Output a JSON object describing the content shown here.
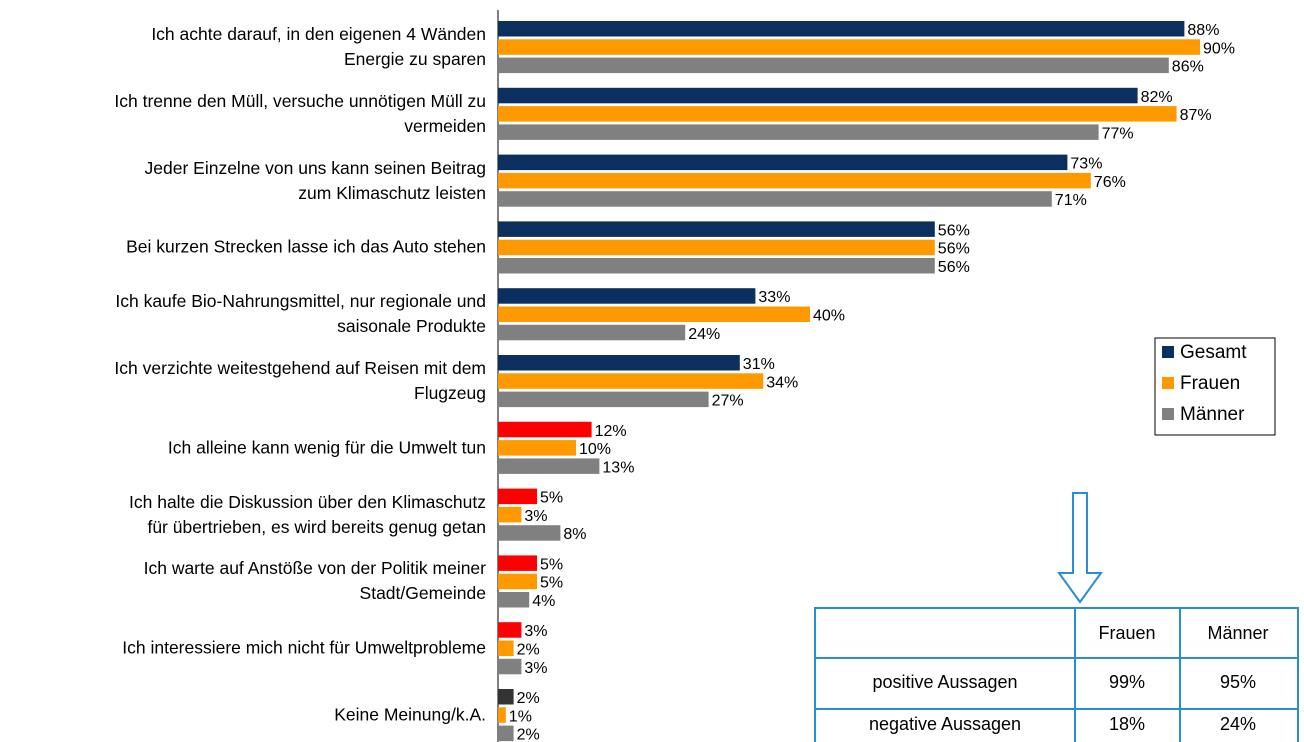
{
  "chart_data": {
    "type": "bar",
    "orientation": "horizontal",
    "categories": [
      "Ich achte darauf, in den eigenen 4 Wänden\nEnergie zu sparen",
      "Ich trenne den Müll, versuche unnötigen Müll zu\nvermeiden",
      "Jeder Einzelne von uns kann seinen Beitrag\nzum Klimaschutz leisten",
      "Bei kurzen Strecken lasse ich das Auto stehen",
      "Ich kaufe Bio-Nahrungsmittel, nur regionale und\nsaisonale Produkte",
      "Ich verzichte weitestgehend auf Reisen mit dem\nFlugzeug",
      "Ich alleine kann wenig für die Umwelt tun",
      "Ich halte die Diskussion  über den Klimaschutz\nfür übertrieben, es wird bereits genug getan",
      "Ich warte auf Anstöße von der Politik meiner\nStadt/Gemeinde",
      "Ich interessiere mich nicht für Umweltprobleme",
      "Keine Meinung/k.A."
    ],
    "series": [
      {
        "name": "Gesamt",
        "color": "#0b2f5e",
        "point_colors": [
          "#0b2f5e",
          "#0b2f5e",
          "#0b2f5e",
          "#0b2f5e",
          "#0b2f5e",
          "#0b2f5e",
          "#ff0000",
          "#ff0000",
          "#ff0000",
          "#ff0000",
          "#333333"
        ],
        "values": [
          88,
          82,
          73,
          56,
          33,
          31,
          12,
          5,
          5,
          3,
          2
        ],
        "value_labels": [
          "88%",
          "82%",
          "73%",
          "56%",
          "33%",
          "31%",
          "12%",
          "5%",
          "5%",
          "3%",
          "2%"
        ]
      },
      {
        "name": "Frauen",
        "color": "#ff9900",
        "values": [
          90,
          87,
          76,
          56,
          40,
          34,
          10,
          3,
          5,
          2,
          1
        ],
        "value_labels": [
          "90%",
          "87%",
          "76%",
          "56%",
          "40%",
          "34%",
          "10%",
          "3%",
          "5%",
          "2%",
          "1%"
        ]
      },
      {
        "name": "Männer",
        "color": "#808080",
        "values": [
          86,
          77,
          71,
          56,
          24,
          27,
          13,
          8,
          4,
          3,
          2
        ],
        "value_labels": [
          "86%",
          "77%",
          "71%",
          "56%",
          "24%",
          "27%",
          "13%",
          "8%",
          "4%",
          "3%",
          "2%"
        ]
      }
    ],
    "legend": "right",
    "table": {
      "columns": [
        "Frauen",
        "Männer"
      ],
      "rows": [
        {
          "label": "positive Aussagen",
          "cells": [
            "99%",
            "95%"
          ]
        },
        {
          "label": "negative Aussagen",
          "cells": [
            "18%",
            "24%"
          ]
        }
      ]
    }
  }
}
